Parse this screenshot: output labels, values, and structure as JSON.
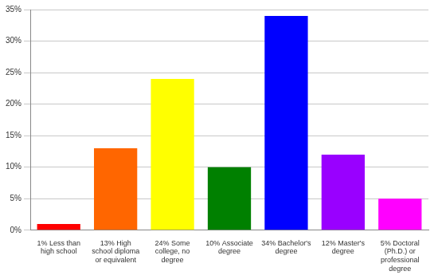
{
  "chart_data": {
    "type": "bar",
    "categories": [
      "1% Less than high school",
      "13% High school diploma or equivalent",
      "24% Some college, no degree",
      "10% Associate degree",
      "34% Bachelor's degree",
      "12% Master's degree",
      "5% Doctoral (Ph.D.) or professional degree"
    ],
    "values": [
      1,
      13,
      24,
      10,
      34,
      12,
      5
    ],
    "colors": [
      "#ff0000",
      "#ff6600",
      "#ffff00",
      "#008000",
      "#0000ff",
      "#9900ff",
      "#ff00ff"
    ],
    "ylim": [
      0,
      35
    ],
    "yticks": [
      {
        "value": 0,
        "label": "0%"
      },
      {
        "value": 5,
        "label": "5%"
      },
      {
        "value": 10,
        "label": "10%"
      },
      {
        "value": 15,
        "label": "15%"
      },
      {
        "value": 20,
        "label": "20%"
      },
      {
        "value": 25,
        "label": "25%"
      },
      {
        "value": 30,
        "label": "30%"
      },
      {
        "value": 35,
        "label": "35%"
      }
    ],
    "grid": true
  }
}
